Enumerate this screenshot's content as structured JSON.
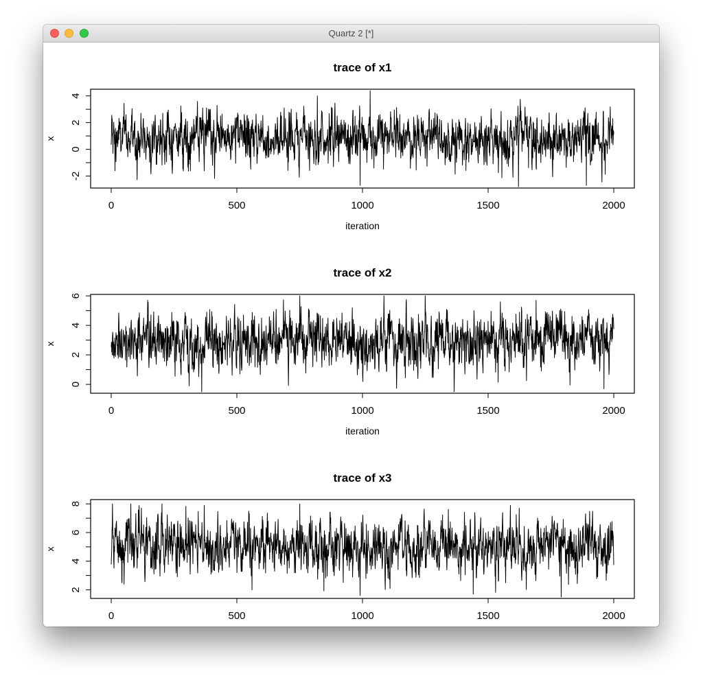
{
  "window": {
    "title": "Quartz 2 [*]"
  },
  "chart_data": [
    {
      "type": "line",
      "title": "trace of x1",
      "xlabel": "iteration",
      "ylabel": "x",
      "xlim": [
        0,
        2000
      ],
      "ylim": [
        -2.9,
        4.5
      ],
      "xticks": [
        0,
        500,
        1000,
        1500,
        2000
      ],
      "yticks": [
        -2,
        0,
        2,
        4
      ],
      "xtick_labels": [
        "0",
        "500",
        "1000",
        "1500",
        "2000"
      ],
      "ytick_labels": [
        "-2",
        "0",
        "2",
        "4"
      ],
      "n_points": 2000,
      "series_summary": {
        "mean": 0.9,
        "sd": 0.95,
        "min": -2.8,
        "max": 4.4
      },
      "notable_points": [
        [
          15,
          -1.6
        ],
        [
          820,
          4.0
        ],
        [
          990,
          -2.7
        ],
        [
          1030,
          4.4
        ],
        [
          1620,
          -2.8
        ],
        [
          1890,
          -2.7
        ]
      ]
    },
    {
      "type": "line",
      "title": "trace of x2",
      "xlabel": "iteration",
      "ylabel": "x",
      "xlim": [
        0,
        2000
      ],
      "ylim": [
        -0.6,
        6.1
      ],
      "xticks": [
        0,
        500,
        1000,
        1500,
        2000
      ],
      "yticks": [
        0,
        2,
        4,
        6
      ],
      "xtick_labels": [
        "0",
        "500",
        "1000",
        "1500",
        "2000"
      ],
      "ytick_labels": [
        "0",
        "2",
        "4",
        "6"
      ],
      "n_points": 2000,
      "series_summary": {
        "mean": 2.9,
        "sd": 0.95,
        "min": -0.5,
        "max": 6.0
      },
      "notable_points": [
        [
          310,
          -0.1
        ],
        [
          360,
          -0.5
        ],
        [
          750,
          6.0
        ],
        [
          1960,
          -0.3
        ],
        [
          1690,
          5.7
        ]
      ]
    },
    {
      "type": "line",
      "title": "trace of x3",
      "xlabel": "",
      "ylabel": "x",
      "xlim": [
        0,
        2000
      ],
      "ylim": [
        1.4,
        8.3
      ],
      "xticks": [
        0,
        500,
        1000,
        1500,
        2000
      ],
      "yticks": [
        2,
        4,
        6,
        8
      ],
      "xtick_labels": [
        "0",
        "500",
        "1000",
        "1500",
        "2000"
      ],
      "ytick_labels": [
        "2",
        "4",
        "6",
        "8"
      ],
      "n_points": 2000,
      "series_summary": {
        "mean": 5.0,
        "sd": 1.0,
        "min": 1.5,
        "max": 8.0
      },
      "notable_points": [
        [
          750,
          8.0
        ],
        [
          370,
          7.9
        ],
        [
          990,
          1.6
        ],
        [
          1440,
          1.7
        ],
        [
          1790,
          1.5
        ],
        [
          560,
          2.0
        ]
      ]
    }
  ]
}
